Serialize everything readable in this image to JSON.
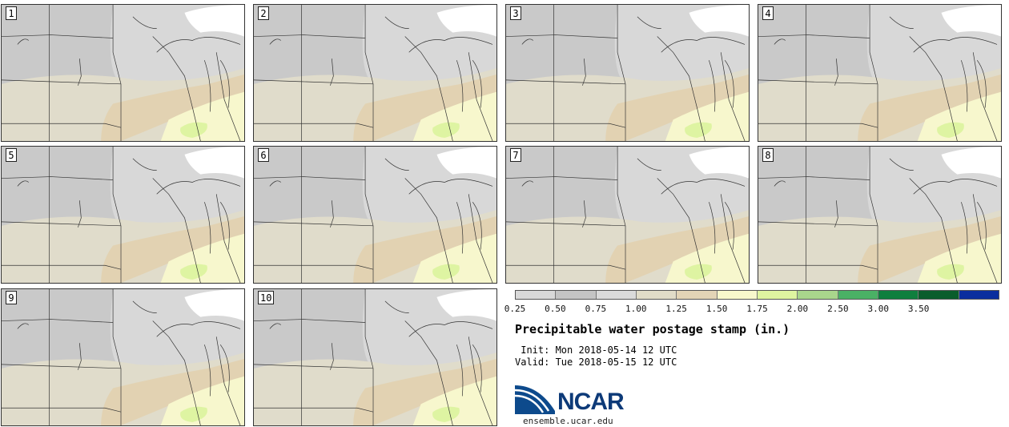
{
  "panels": [
    {
      "label": "1"
    },
    {
      "label": "2"
    },
    {
      "label": "3"
    },
    {
      "label": "4"
    },
    {
      "label": "5"
    },
    {
      "label": "6"
    },
    {
      "label": "7"
    },
    {
      "label": "8"
    },
    {
      "label": "9"
    },
    {
      "label": "10"
    }
  ],
  "colorbar": {
    "colors": [
      "#d9d9d9",
      "#c4c4c4",
      "#dadada",
      "#e1dcc8",
      "#e3d4b6",
      "#f8f8cc",
      "#dff5a0",
      "#a9d68c",
      "#4ab165",
      "#0f7f3e",
      "#0a5d2c",
      "#0a2e9e"
    ],
    "ticks": [
      "0.25",
      "0.50",
      "0.75",
      "1.00",
      "1.25",
      "1.50",
      "1.75",
      "2.00",
      "2.50",
      "3.00",
      "3.50"
    ]
  },
  "title": "Precipitable water postage stamp (in.)",
  "init": " Init: Mon 2018-05-14 12 UTC",
  "valid": "Valid: Tue 2018-05-15 12 UTC",
  "logo": {
    "text": "NCAR",
    "site": "ensemble.ucar.edu"
  }
}
